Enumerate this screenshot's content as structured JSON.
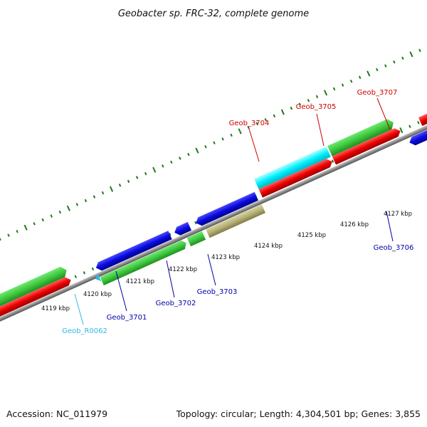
{
  "title": "Geobacter sp. FRC-32, complete genome",
  "footer": {
    "accession": "Accession: NC_011979",
    "summary": "Topology: circular; Length: 4,304,501 bp; Genes: 3,855"
  },
  "colors": {
    "strand_line": "#8a8a8a",
    "tick": "#1c7a1c",
    "label_dark_blue": "#0000aa",
    "label_red": "#cc0000",
    "label_cyan": "#33b5e5",
    "gene_green": "#3fc83f",
    "gene_red": "#ee0000",
    "gene_blue": "#0a0ae0",
    "gene_cyan": "#00f0ff",
    "gene_khaki": "#b5b075",
    "gene_purple": "#6a5acd"
  },
  "scale_ticks": [
    "4119 kbp",
    "4120 kbp",
    "4121 kbp",
    "4122 kbp",
    "4123 kbp",
    "4124 kbp",
    "4125 kbp",
    "4126 kbp",
    "4127 kbp"
  ],
  "gene_labels": [
    {
      "name": "Geob_R0062",
      "color": "label_cyan"
    },
    {
      "name": "Geob_3701",
      "color": "label_dark_blue"
    },
    {
      "name": "Geob_3702",
      "color": "label_dark_blue"
    },
    {
      "name": "Geob_3703",
      "color": "label_dark_blue"
    },
    {
      "name": "Geob_3704",
      "color": "label_red"
    },
    {
      "name": "Geob_3705",
      "color": "label_red"
    },
    {
      "name": "Geob_3706",
      "color": "label_dark_blue"
    },
    {
      "name": "Geob_3707",
      "color": "label_red"
    }
  ]
}
